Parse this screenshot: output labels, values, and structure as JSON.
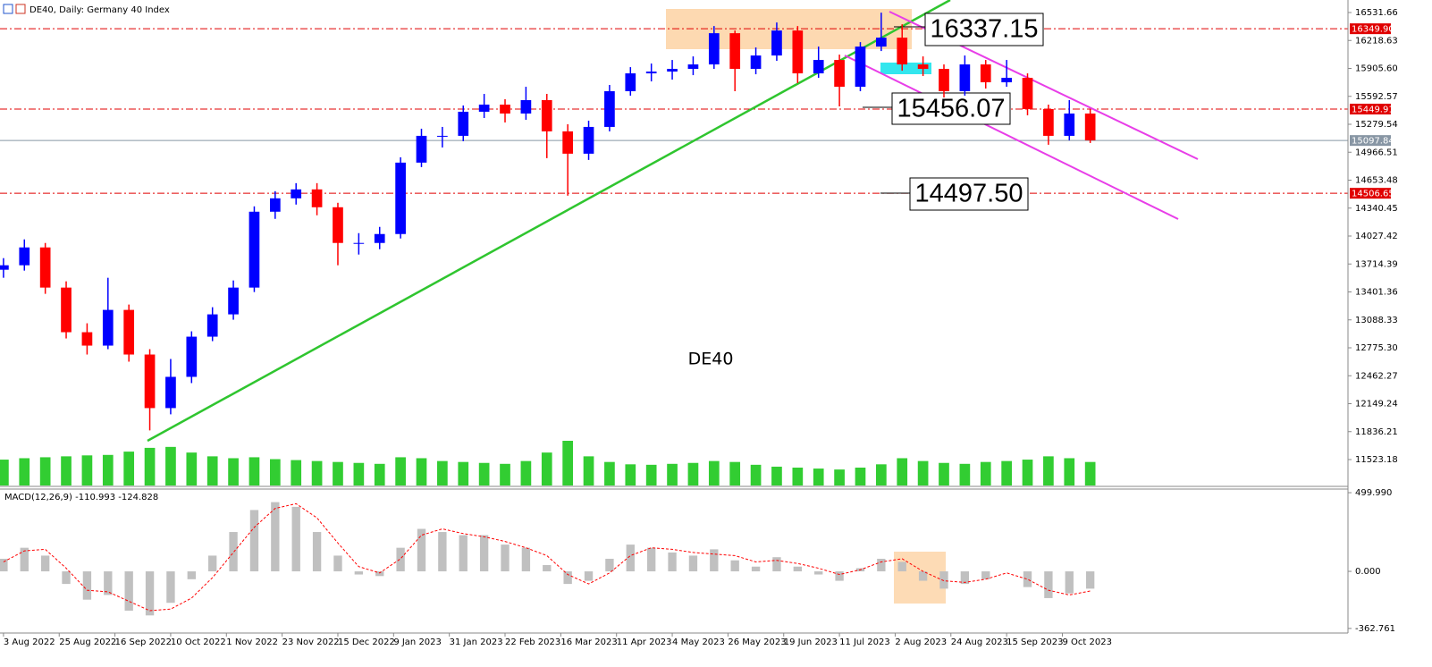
{
  "header": {
    "title": "DE40, Daily:  Germany 40 Index"
  },
  "chart_data": [
    {
      "type": "candlestick",
      "symbol_label": "DE40",
      "x": [
        0,
        6,
        12,
        18,
        24,
        30,
        36,
        42,
        48,
        54,
        60,
        66,
        72,
        78,
        84,
        90,
        96,
        102,
        108,
        114,
        120,
        126,
        132,
        138,
        144,
        150,
        156,
        162,
        168,
        174,
        180,
        186,
        192,
        198,
        204,
        210,
        216,
        222,
        228,
        234,
        240,
        246,
        252,
        258,
        264,
        270,
        276,
        282,
        288,
        294,
        300,
        306,
        312
      ],
      "open": [
        13650,
        13700,
        13900,
        13450,
        12950,
        12800,
        13200,
        12700,
        12100,
        12450,
        12900,
        13150,
        13450,
        14300,
        14450,
        14550,
        14350,
        13950,
        13950,
        14050,
        14850,
        15150,
        15150,
        15420,
        15500,
        15400,
        15550,
        15200,
        14950,
        15250,
        15650,
        15850,
        15870,
        15900,
        15950,
        16300,
        15900,
        16050,
        16330,
        15850,
        16000,
        15700,
        16150,
        16250,
        15950,
        15900,
        15650,
        15950,
        15750,
        15800,
        15450,
        15150,
        15400
      ],
      "high": [
        13780,
        13990,
        13950,
        13520,
        13050,
        13560,
        13260,
        12760,
        12650,
        12960,
        13230,
        13530,
        14360,
        14530,
        14620,
        14620,
        14400,
        14060,
        14130,
        14910,
        15230,
        15250,
        15490,
        15620,
        15560,
        15700,
        15620,
        15280,
        15320,
        15720,
        15920,
        15960,
        16000,
        16040,
        16380,
        16330,
        16140,
        16420,
        16380,
        16150,
        16060,
        16200,
        16530,
        16400,
        16040,
        15950,
        16050,
        16000,
        16000,
        15850,
        15500,
        15550,
        15450
      ],
      "low": [
        13560,
        13640,
        13380,
        12880,
        12700,
        12760,
        12620,
        11850,
        12030,
        12380,
        12850,
        13090,
        13400,
        14220,
        14380,
        14260,
        13700,
        13820,
        13880,
        14000,
        14800,
        15020,
        15090,
        15350,
        15300,
        15330,
        14900,
        14480,
        14880,
        15200,
        15600,
        15760,
        15780,
        15830,
        15900,
        15650,
        15840,
        15990,
        15740,
        15800,
        15480,
        15650,
        16100,
        15880,
        15820,
        15580,
        15600,
        15680,
        15700,
        15380,
        15050,
        15100,
        15070
      ],
      "close": [
        13700,
        13900,
        13450,
        12950,
        12800,
        13200,
        12700,
        12100,
        12450,
        12900,
        13150,
        13450,
        14300,
        14450,
        14550,
        14350,
        13950,
        13950,
        14050,
        14850,
        15150,
        15150,
        15420,
        15500,
        15400,
        15550,
        15200,
        14950,
        15250,
        15650,
        15850,
        15870,
        15900,
        15950,
        16300,
        15900,
        16050,
        16330,
        15850,
        16000,
        15700,
        16150,
        16250,
        15950,
        15900,
        15650,
        15950,
        15750,
        15800,
        15450,
        15150,
        15400,
        15100
      ],
      "volume": [
        55,
        58,
        60,
        62,
        64,
        65,
        72,
        80,
        82,
        70,
        62,
        58,
        60,
        56,
        54,
        52,
        50,
        48,
        46,
        60,
        58,
        52,
        50,
        48,
        46,
        52,
        70,
        95,
        62,
        50,
        45,
        44,
        46,
        48,
        52,
        50,
        44,
        40,
        38,
        36,
        34,
        38,
        45,
        58,
        52,
        48,
        46,
        50,
        52,
        55,
        62,
        58,
        50
      ],
      "colors": {
        "up": "#0000ff",
        "down": "#ff0000",
        "volume": "#32cd32"
      },
      "xlim": [
        -1,
        386
      ],
      "xticks": [
        {
          "value": 0,
          "label": "3 Aug 2022"
        },
        {
          "value": 16,
          "label": "25 Aug 2022"
        },
        {
          "value": 32,
          "label": "16 Sep 2022"
        },
        {
          "value": 48,
          "label": "10 Oct 2022"
        },
        {
          "value": 64,
          "label": "1 Nov 2022"
        },
        {
          "value": 80,
          "label": "23 Nov 2022"
        },
        {
          "value": 96,
          "label": "15 Dec 2022"
        },
        {
          "value": 112,
          "label": "9 Jan 2023"
        },
        {
          "value": 128,
          "label": "31 Jan 2023"
        },
        {
          "value": 144,
          "label": "22 Feb 2023"
        },
        {
          "value": 160,
          "label": "16 Mar 2023"
        },
        {
          "value": 176,
          "label": "11 Apr 2023"
        },
        {
          "value": 192,
          "label": "4 May 2023"
        },
        {
          "value": 208,
          "label": "26 May 2023"
        },
        {
          "value": 224,
          "label": "19 Jun 2023"
        },
        {
          "value": 240,
          "label": "11 Jul 2023"
        },
        {
          "value": 256,
          "label": "2 Aug 2023"
        },
        {
          "value": 272,
          "label": "24 Aug 2023"
        },
        {
          "value": 288,
          "label": "15 Sep 2023"
        },
        {
          "value": 304,
          "label": "9 Oct 2023"
        }
      ],
      "ylim": [
        11232.7,
        16671.9
      ],
      "yticks": [
        16531.66,
        16218.63,
        {
          "value": 15905.6,
          "label": "15905.60"
        },
        15592.57,
        15279.54,
        14966.51,
        14653.48,
        14340.45,
        14027.42,
        13714.39,
        13401.36,
        13088.33,
        {
          "value": 12775.3,
          "label": "12775.30"
        },
        12462.27,
        12149.24,
        11836.21,
        11523.18
      ],
      "price_levels": [
        {
          "value": 16349.9,
          "label": "16349.90",
          "style": "dashdot",
          "color": "#e00000",
          "text_color": "#ffffff"
        },
        {
          "value": 15449.91,
          "label": "15449.91",
          "style": "dashdot",
          "color": "#e00000",
          "text_color": "#ffffff"
        },
        {
          "value": 15097.84,
          "label": "15097.84",
          "style": "solid",
          "color": "#8896a4",
          "text_color": "#ffffff"
        },
        {
          "value": 14506.65,
          "label": "14506.65",
          "style": "dashdot",
          "color": "#e00000",
          "text_color": "#ffffff"
        }
      ],
      "annotations": [
        "16337.15",
        "15456.07",
        "14497.50"
      ]
    },
    {
      "type": "macd",
      "label": "MACD(12,26,9) -110.993 -124.828",
      "x": [
        0,
        6,
        12,
        18,
        24,
        30,
        36,
        42,
        48,
        54,
        60,
        66,
        72,
        78,
        84,
        90,
        96,
        102,
        108,
        114,
        120,
        126,
        132,
        138,
        144,
        150,
        156,
        162,
        168,
        174,
        180,
        186,
        192,
        198,
        204,
        210,
        216,
        222,
        228,
        234,
        240,
        246,
        252,
        258,
        264,
        270,
        276,
        282,
        288,
        294,
        300,
        306,
        312
      ],
      "histogram": [
        80,
        150,
        100,
        -80,
        -180,
        -150,
        -250,
        -280,
        -200,
        -50,
        100,
        250,
        390,
        440,
        410,
        250,
        100,
        -20,
        -30,
        150,
        270,
        250,
        230,
        230,
        170,
        150,
        40,
        -80,
        -60,
        80,
        170,
        150,
        120,
        100,
        140,
        70,
        30,
        90,
        30,
        -20,
        -60,
        20,
        80,
        60,
        -60,
        -110,
        -80,
        -50,
        0,
        -100,
        -170,
        -140,
        -110
      ],
      "signal": [
        60,
        130,
        140,
        20,
        -120,
        -130,
        -190,
        -250,
        -240,
        -170,
        -40,
        120,
        280,
        400,
        430,
        340,
        180,
        30,
        -10,
        80,
        230,
        270,
        240,
        220,
        190,
        150,
        100,
        -20,
        -80,
        -10,
        100,
        150,
        140,
        120,
        110,
        100,
        60,
        70,
        50,
        20,
        -20,
        10,
        60,
        80,
        0,
        -60,
        -70,
        -50,
        -10,
        -50,
        -120,
        -150,
        -125
      ],
      "colors": {
        "histogram": "#c0c0c0",
        "signal": "#ff0000"
      },
      "xlim": [
        -1,
        386
      ],
      "ylim": [
        -392,
        523
      ],
      "yticks": [
        {
          "value": 499.99,
          "label": "499.990"
        },
        {
          "value": 0,
          "label": "0.000"
        },
        {
          "value": -362.761,
          "label": "-362.761"
        }
      ]
    }
  ]
}
